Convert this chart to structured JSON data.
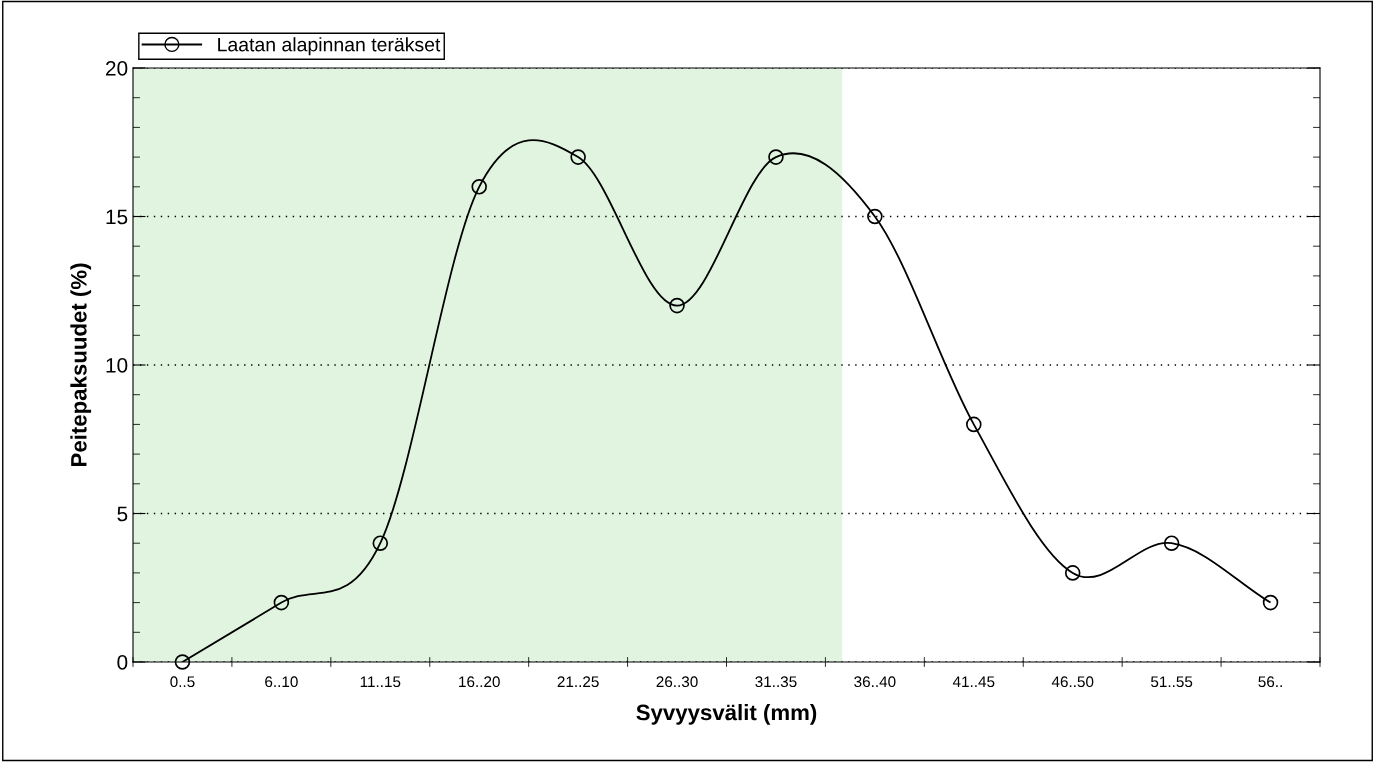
{
  "chart_data": {
    "type": "line",
    "xlabel": "Syvyysvälit (mm)",
    "ylabel": "Peitepaksuudet (%)",
    "categories": [
      "0..5",
      "6..10",
      "11..15",
      "16..20",
      "21..25",
      "26..30",
      "31..35",
      "36..40",
      "41..45",
      "46..50",
      "51..55",
      "56.."
    ],
    "series": [
      {
        "name": "Laatan alapinnan teräkset",
        "color": "#000000",
        "values": [
          0,
          2,
          4,
          16,
          17,
          12,
          17,
          15,
          8,
          3,
          4,
          2
        ]
      }
    ],
    "ylim": [
      0,
      20
    ],
    "yticks": [
      0,
      5,
      10,
      15,
      20
    ],
    "grid": "y",
    "legend": "top left",
    "marker": "circle",
    "line_style": "solid"
  }
}
